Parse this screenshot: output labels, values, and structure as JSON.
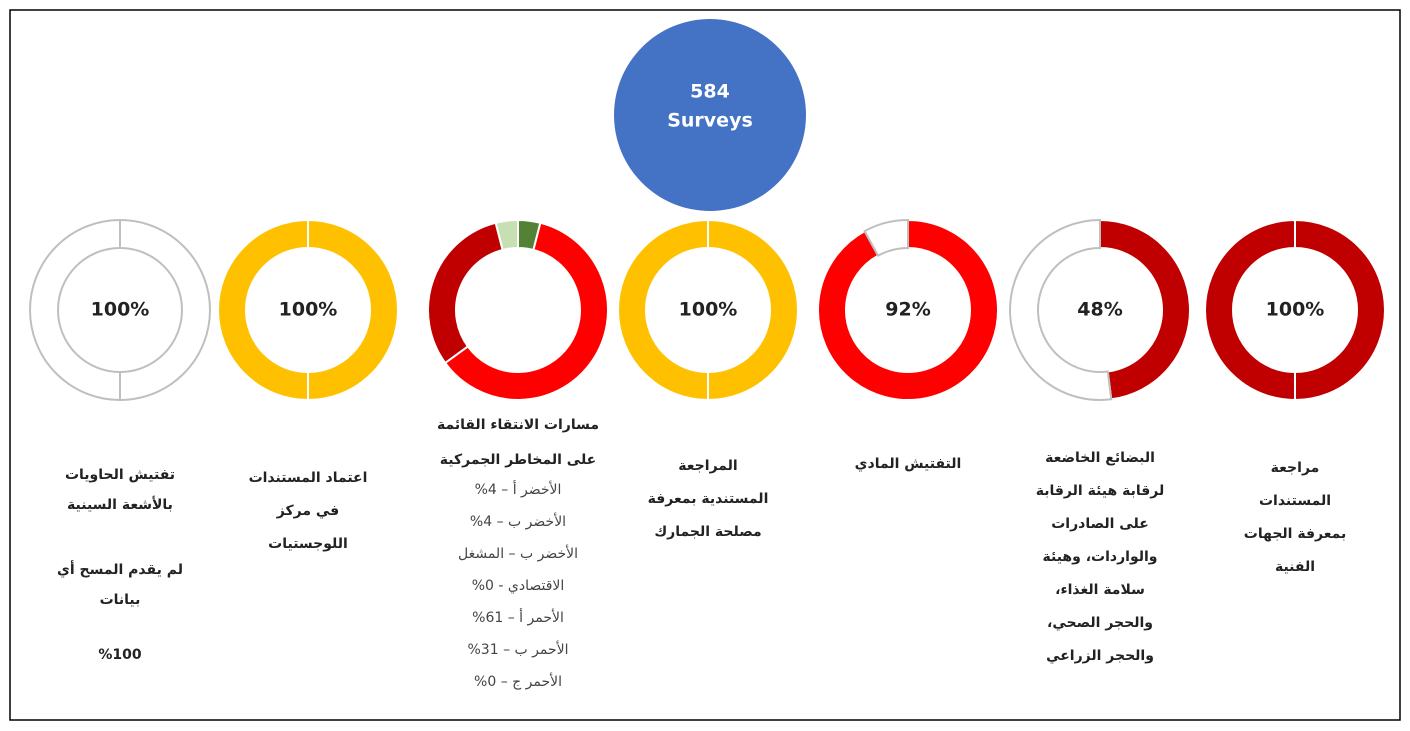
{
  "header": {
    "count": "584",
    "label": "Surveys"
  },
  "chart_data": [
    {
      "type": "donut",
      "values": [
        100
      ],
      "value_labels": [
        "100%"
      ],
      "colors": [
        "#ffffff"
      ],
      "caption": [
        "تفتيش الحاويات",
        "بالأشعة السينية",
        "لم يقدم المسح أي",
        "بيانات",
        "%100"
      ]
    },
    {
      "type": "donut",
      "values": [
        100
      ],
      "value_labels": [
        "100%"
      ],
      "colors": [
        "#ffc000"
      ],
      "caption": [
        "اعتماد المستندات",
        "في مركز",
        "اللوجستيات"
      ]
    },
    {
      "type": "donut",
      "categories": [
        "الأخضر أ – 4%",
        "الأخضر ب – 4%",
        "الأخضر ب – المشغل الاقتصادي - 0%",
        "الأحمر أ – 61%",
        "الأحمر ب – 31%",
        "الأحمر ج – 0%"
      ],
      "values": [
        4,
        4,
        0,
        61,
        31,
        0
      ],
      "colors": [
        "#c6e0b4",
        "#548235",
        "#70ad47",
        "#ff0000",
        "#c00000",
        "#7f0000"
      ],
      "caption": [
        "مسارات الانتقاء القائمة",
        "على المخاطر الجمركية"
      ]
    },
    {
      "type": "donut",
      "values": [
        100
      ],
      "value_labels": [
        "100%"
      ],
      "colors": [
        "#ffc000"
      ],
      "caption": [
        "المراجعة",
        "المستندية بمعرفة",
        "مصلحة الجمارك"
      ]
    },
    {
      "type": "donut",
      "values": [
        92,
        8
      ],
      "value_labels": [
        "92%",
        null
      ],
      "colors": [
        "#ff0000",
        "#ffffff"
      ],
      "caption": [
        "التفتيش المادي"
      ]
    },
    {
      "type": "donut",
      "values": [
        48,
        52
      ],
      "value_labels": [
        "48%",
        null
      ],
      "colors": [
        "#c00000",
        "#ffffff"
      ],
      "caption": [
        "البضائع الخاضعة",
        "لرقابة هيئة الرقابة",
        "على الصادرات",
        "والواردات، وهيئة",
        "سلامة الغذاء،",
        "والحجر الصحي،",
        "والحجر الزراعي"
      ]
    },
    {
      "type": "donut",
      "values": [
        100
      ],
      "value_labels": [
        "100%"
      ],
      "colors": [
        "#c00000"
      ],
      "caption": [
        "مراجعة",
        "المستندات",
        "بمعرفة الجهات",
        "الفنية"
      ]
    }
  ]
}
